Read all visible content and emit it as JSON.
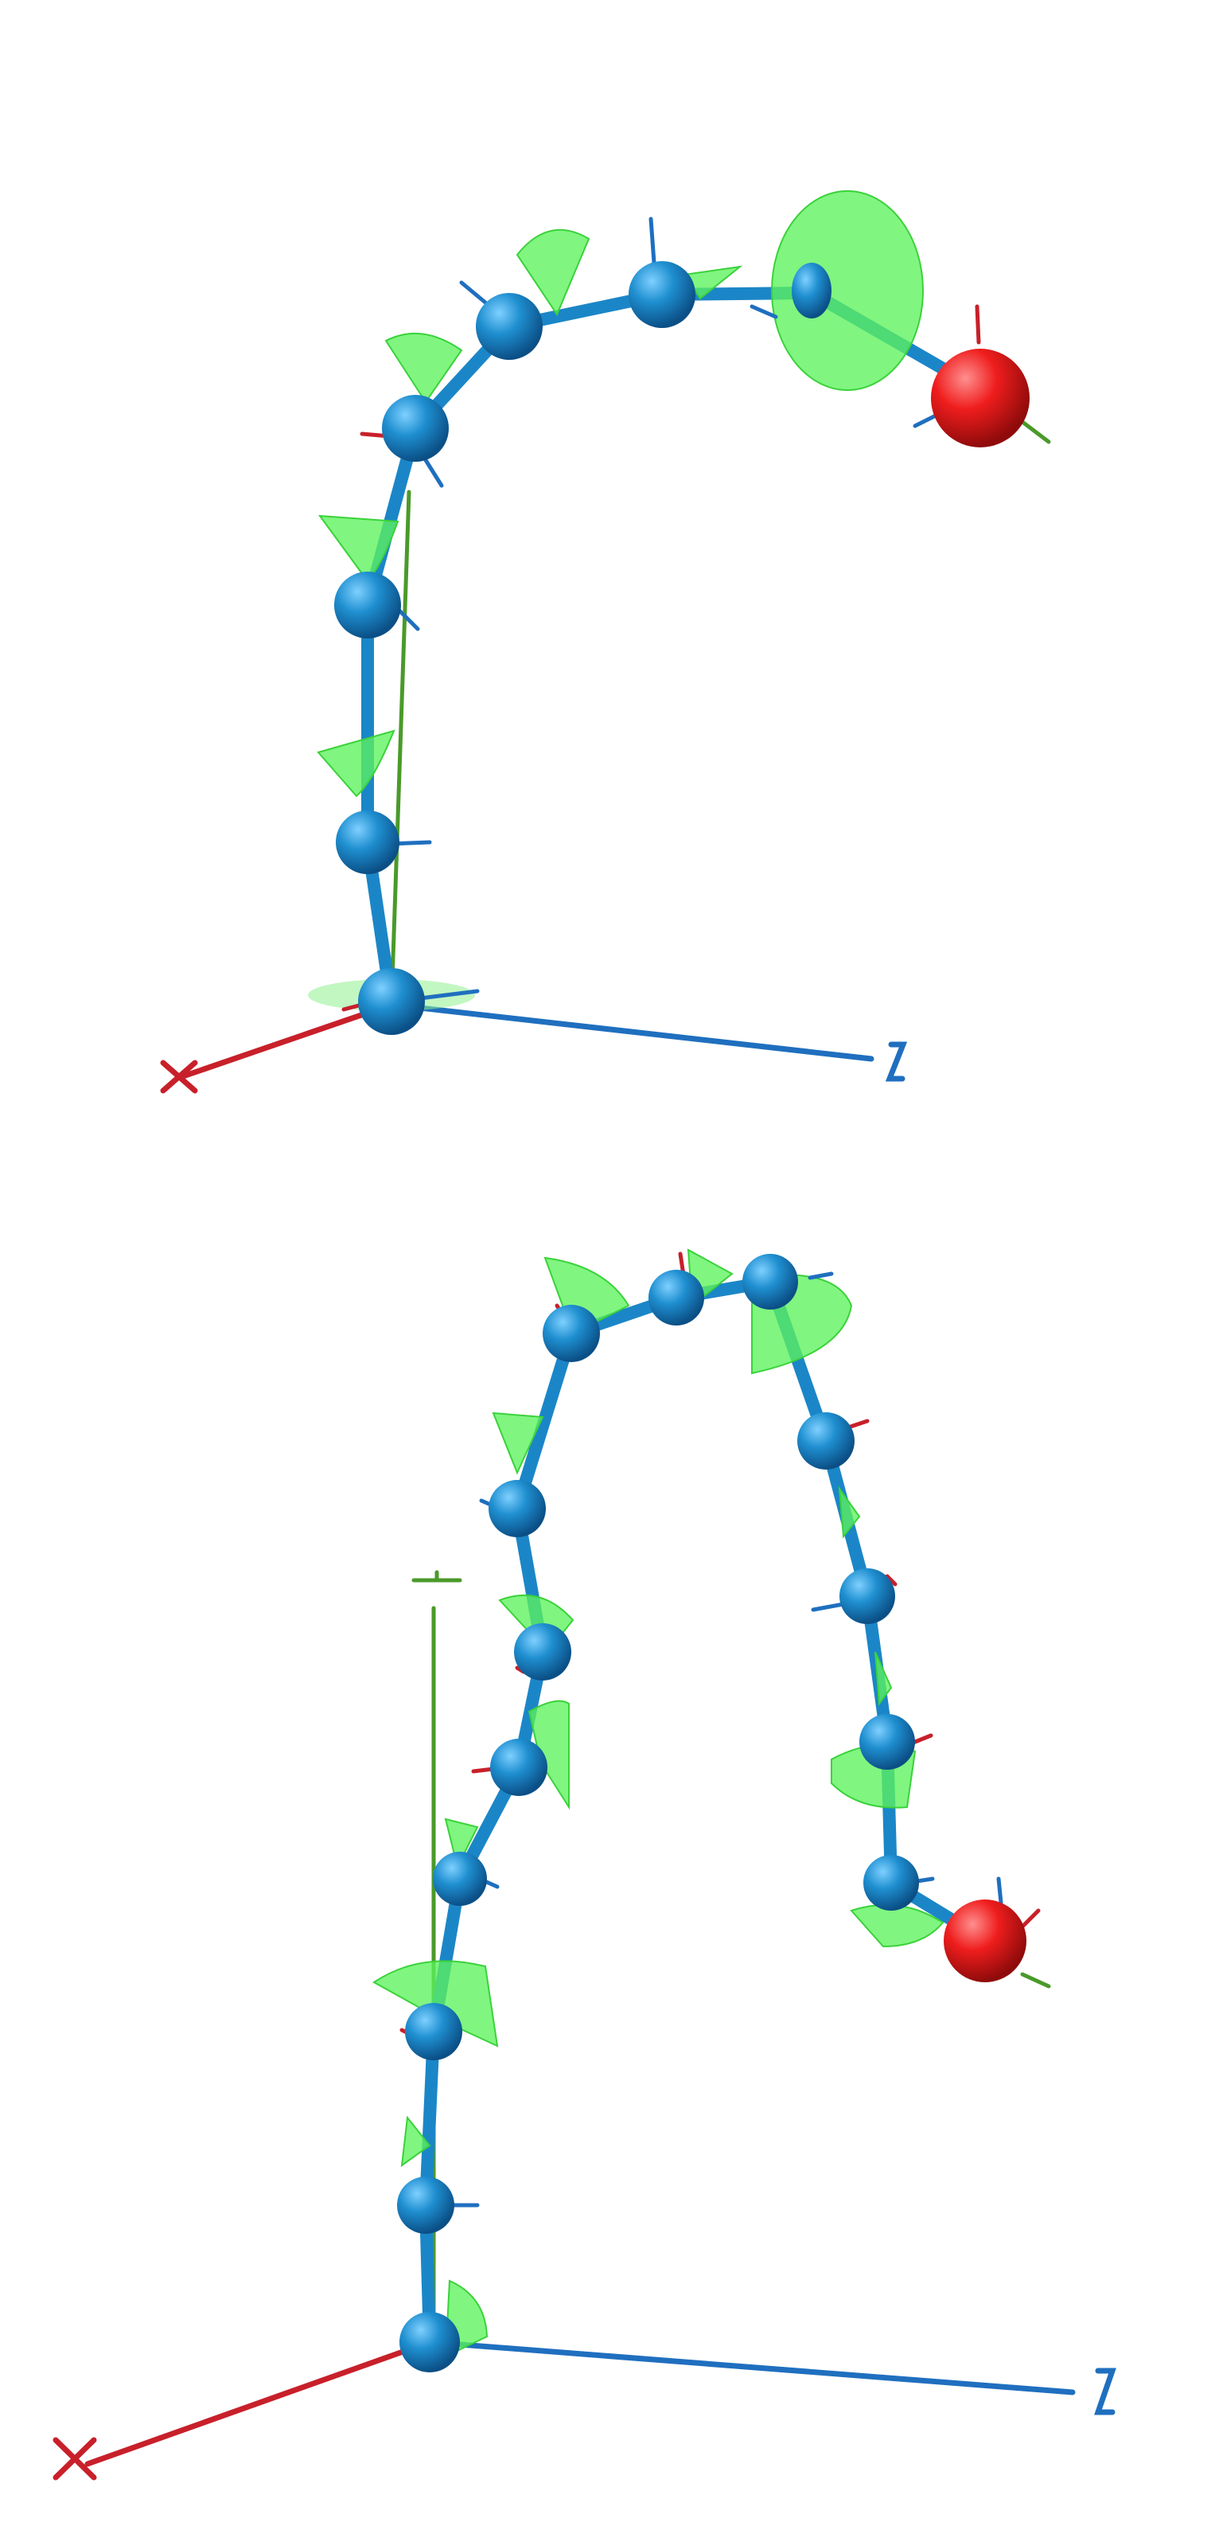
{
  "panels": [
    {
      "id": "top",
      "axes": {
        "x_label": "X",
        "z_label": "Z",
        "y_label": ""
      }
    },
    {
      "id": "bottom",
      "axes": {
        "x_label": "X",
        "z_label": "Z",
        "y_label": ""
      }
    }
  ],
  "colors": {
    "joint": "#1b86c7",
    "end_effector": "#e8191c",
    "cone": "#5cf25c",
    "x_axis": "#c8202a",
    "z_axis": "#1f6fbf",
    "y_axis": "#4a9a2a"
  }
}
